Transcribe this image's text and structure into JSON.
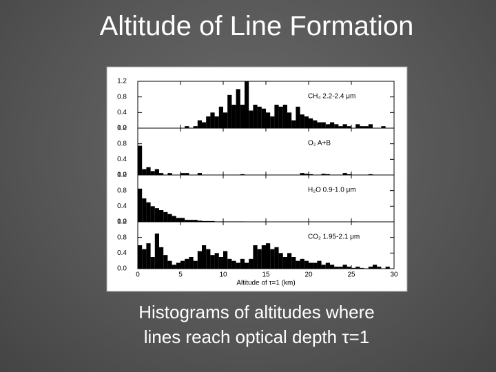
{
  "slide": {
    "title": "Altitude of Line Formation",
    "caption": [
      "Histograms of altitudes where",
      "lines reach optical depth τ=1"
    ]
  },
  "chart_data": [
    {
      "type": "histogram",
      "annotation": "CH₄ 2.2-2.4 μm",
      "color": "#000000",
      "bins": [
        0,
        0.5,
        1,
        1.5,
        2,
        2.5,
        3,
        3.5,
        4,
        4.5,
        5,
        5.5,
        6,
        6.5,
        7,
        7.5,
        8,
        8.5,
        9,
        9.5,
        10,
        10.5,
        11,
        11.5,
        12,
        12.5,
        13,
        13.5,
        14,
        14.5,
        15,
        15.5,
        16,
        16.5,
        17,
        17.5,
        18,
        18.5,
        19,
        19.5,
        20,
        20.5,
        21,
        21.5,
        22,
        22.5,
        23,
        23.5,
        24,
        24.5,
        25,
        25.5,
        26,
        26.5,
        27,
        27.5,
        28,
        28.5,
        29,
        29.5,
        30
      ],
      "counts": [
        0,
        0,
        0,
        0,
        0,
        0,
        0,
        0,
        0,
        0,
        0,
        0.05,
        0,
        0.05,
        0.2,
        0.15,
        0.3,
        0.4,
        0.3,
        0.55,
        0.4,
        0.85,
        0.6,
        1.0,
        0.6,
        1.2,
        0.45,
        0.6,
        0.55,
        0.5,
        0.4,
        0.3,
        0.6,
        0.55,
        0.6,
        0.4,
        0.2,
        0.55,
        0.35,
        0.3,
        0.25,
        0.2,
        0.15,
        0.15,
        0.1,
        0.15,
        0.1,
        0.05,
        0.1,
        0.05,
        0,
        0.1,
        0.05,
        0.05,
        0.1,
        0,
        0,
        0.05,
        0,
        0
      ],
      "xlim": [
        0,
        30
      ],
      "xticks": [
        0,
        5,
        10,
        15,
        20,
        25,
        30
      ],
      "ylim": [
        0,
        1.2
      ],
      "yticks": [
        {
          "value": 0,
          "label": "0.0"
        },
        0.4,
        0.8,
        1.2
      ]
    },
    {
      "type": "histogram",
      "annotation": "O₂ A+B",
      "color": "#000000",
      "bins": [
        0,
        0.5,
        1,
        1.5,
        2,
        2.5,
        3,
        3.5,
        4,
        4.5,
        5,
        5.5,
        6,
        6.5,
        7,
        7.5,
        8,
        8.5,
        9,
        9.5,
        10,
        10.5,
        11,
        11.5,
        12,
        12.5,
        13,
        13.5,
        14,
        14.5,
        15,
        15.5,
        16,
        16.5,
        17,
        17.5,
        18,
        18.5,
        19,
        19.5,
        20,
        20.5,
        21,
        21.5,
        22,
        22.5,
        23,
        23.5,
        24,
        24.5,
        25,
        25.5,
        26,
        26.5,
        27,
        27.5,
        28,
        28.5,
        29,
        29.5,
        30
      ],
      "counts": [
        0.75,
        0.15,
        0.2,
        0.1,
        0.15,
        0.05,
        0,
        0.05,
        0,
        0,
        0.05,
        0.05,
        0,
        0,
        0.05,
        0,
        0,
        0,
        0,
        0,
        0,
        0,
        0,
        0,
        0.02,
        0,
        0,
        0,
        0,
        0,
        0,
        0,
        0,
        0,
        0,
        0,
        0,
        0,
        0.05,
        0.03,
        0.02,
        0,
        0,
        0.03,
        0.02,
        0,
        0,
        0,
        0.05,
        0.02,
        0,
        0,
        0,
        0,
        0.02,
        0,
        0,
        0,
        0,
        0
      ],
      "xlim": [
        0,
        30
      ],
      "xticks": [
        0,
        5,
        10,
        15,
        20,
        25,
        30
      ],
      "ylim": [
        0,
        1.2
      ],
      "yticks": [
        {
          "value": 0,
          "label": "0.0"
        },
        0.4,
        0.8,
        1.2
      ]
    },
    {
      "type": "histogram",
      "annotation": "H₂O 0.9-1.0 μm",
      "color": "#000000",
      "bins": [
        0,
        0.5,
        1,
        1.5,
        2,
        2.5,
        3,
        3.5,
        4,
        4.5,
        5,
        5.5,
        6,
        6.5,
        7,
        7.5,
        8,
        8.5,
        9,
        9.5,
        10,
        10.5,
        11,
        11.5,
        12,
        12.5,
        13,
        13.5,
        14,
        14.5,
        15,
        15.5,
        16,
        16.5,
        17,
        17.5,
        18,
        18.5,
        19,
        19.5,
        20,
        20.5,
        21,
        21.5,
        22,
        22.5,
        23,
        23.5,
        24,
        24.5,
        25,
        25.5,
        26,
        26.5,
        27,
        27.5,
        28,
        28.5,
        29,
        29.5,
        30
      ],
      "counts": [
        0.85,
        0.6,
        0.5,
        0.4,
        0.35,
        0.3,
        0.25,
        0.2,
        0.15,
        0.1,
        0.1,
        0.05,
        0.05,
        0.05,
        0.03,
        0.02,
        0.02,
        0.02,
        0.01,
        0.01,
        0.01,
        0.01,
        0.01,
        0.01,
        0.01,
        0,
        0,
        0,
        0,
        0,
        0,
        0,
        0,
        0,
        0,
        0,
        0,
        0,
        0,
        0,
        0,
        0,
        0,
        0,
        0,
        0,
        0,
        0,
        0,
        0,
        0.01,
        0,
        0,
        0,
        0,
        0,
        0,
        0,
        0,
        0
      ],
      "xlim": [
        0,
        30
      ],
      "xticks": [
        0,
        5,
        10,
        15,
        20,
        25,
        30
      ],
      "ylim": [
        0,
        1.2
      ],
      "yticks": [
        {
          "value": 0,
          "label": "0.0"
        },
        0.4,
        0.8,
        1.2
      ]
    },
    {
      "type": "histogram",
      "annotation": "CO₂ 1.95-2.1 μm",
      "color": "#000000",
      "bins": [
        0,
        0.5,
        1,
        1.5,
        2,
        2.5,
        3,
        3.5,
        4,
        4.5,
        5,
        5.5,
        6,
        6.5,
        7,
        7.5,
        8,
        8.5,
        9,
        9.5,
        10,
        10.5,
        11,
        11.5,
        12,
        12.5,
        13,
        13.5,
        14,
        14.5,
        15,
        15.5,
        16,
        16.5,
        17,
        17.5,
        18,
        18.5,
        19,
        19.5,
        20,
        20.5,
        21,
        21.5,
        22,
        22.5,
        23,
        23.5,
        24,
        24.5,
        25,
        25.5,
        26,
        26.5,
        27,
        27.5,
        28,
        28.5,
        29,
        29.5,
        30
      ],
      "counts": [
        0.6,
        0.5,
        0.65,
        0.3,
        0.9,
        0.55,
        0.35,
        0.2,
        0.1,
        0.15,
        0.2,
        0.25,
        0.3,
        0.2,
        0.45,
        0.6,
        0.5,
        0.35,
        0.4,
        0.3,
        0.45,
        0.25,
        0.2,
        0.15,
        0.25,
        0.15,
        0.25,
        0.6,
        0.5,
        0.6,
        0.65,
        0.5,
        0.55,
        0.4,
        0.3,
        0.4,
        0.3,
        0.2,
        0.25,
        0.2,
        0.15,
        0.15,
        0.2,
        0.1,
        0.15,
        0.1,
        0.05,
        0.05,
        0.1,
        0.05,
        0.02,
        0.05,
        0.02,
        0,
        0.05,
        0.1,
        0.05,
        0,
        0.05,
        0
      ],
      "xlim": [
        0,
        30
      ],
      "xticks": [
        0,
        5,
        10,
        15,
        20,
        25,
        30
      ],
      "ylim": [
        0,
        1.2
      ],
      "yticks": [
        {
          "value": 0,
          "label": "0.0"
        },
        0.4,
        0.8,
        1.2
      ],
      "xlabel": "Altitude of τ=1 (km)"
    }
  ]
}
